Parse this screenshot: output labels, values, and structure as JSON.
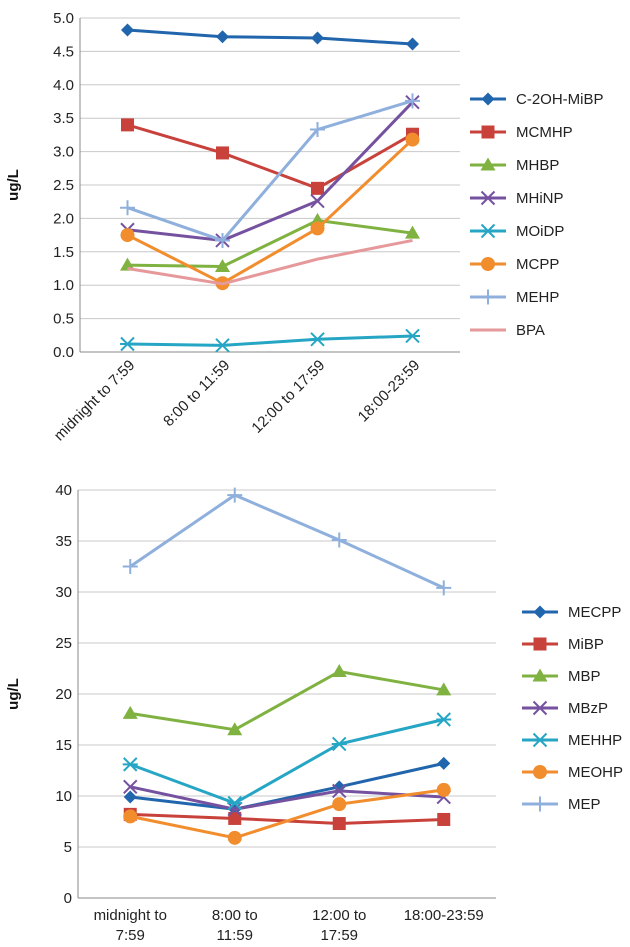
{
  "chart_data": [
    {
      "type": "line",
      "ylabel": "ug/L",
      "ylim": [
        0,
        5
      ],
      "yticks": [
        "0.0",
        "0.5",
        "1.0",
        "1.5",
        "2.0",
        "2.5",
        "3.0",
        "3.5",
        "4.0",
        "4.5",
        "5.0"
      ],
      "categories": [
        "midnight to 7:59",
        "8:00 to 11:59",
        "12:00 to 17:59",
        "18:00-23:59"
      ],
      "grid": true,
      "legend": "right",
      "series": [
        {
          "name": "C-2OH-MiBP",
          "color": "#2166ac",
          "marker": "diamond",
          "values": [
            4.82,
            4.72,
            4.7,
            4.61
          ]
        },
        {
          "name": "MCMHP",
          "color": "#c8413b",
          "marker": "square",
          "values": [
            3.4,
            2.98,
            2.45,
            3.26
          ]
        },
        {
          "name": "MHBP",
          "color": "#80b241",
          "marker": "triangle",
          "values": [
            1.3,
            1.28,
            1.97,
            1.78
          ]
        },
        {
          "name": "MHiNP",
          "color": "#7552a0",
          "marker": "x",
          "values": [
            1.83,
            1.67,
            2.26,
            3.74
          ]
        },
        {
          "name": "MOiDP",
          "color": "#26a6c4",
          "marker": "asterisk",
          "values": [
            0.12,
            0.1,
            0.19,
            0.24
          ]
        },
        {
          "name": "MCPP",
          "color": "#f28d2e",
          "marker": "circle",
          "values": [
            1.75,
            1.03,
            1.85,
            3.18
          ]
        },
        {
          "name": "MEHP",
          "color": "#8fb0dc",
          "marker": "plus",
          "values": [
            2.16,
            1.67,
            3.33,
            3.76
          ]
        },
        {
          "name": "BPA",
          "color": "#e6999a",
          "marker": "none",
          "values": [
            1.25,
            1.02,
            1.39,
            1.67
          ]
        }
      ]
    },
    {
      "type": "line",
      "ylabel": "ug/L",
      "ylim": [
        0,
        40
      ],
      "yticks": [
        "0",
        "5",
        "10",
        "15",
        "20",
        "25",
        "30",
        "35",
        "40"
      ],
      "categories": [
        "midnight to 7:59",
        "8:00 to 11:59",
        "12:00 to 17:59",
        "18:00-23:59"
      ],
      "grid": true,
      "legend": "right",
      "series": [
        {
          "name": "MECPP",
          "color": "#2166ac",
          "marker": "diamond",
          "values": [
            9.9,
            8.7,
            10.9,
            13.2
          ]
        },
        {
          "name": "MiBP",
          "color": "#c8413b",
          "marker": "square",
          "values": [
            8.2,
            7.8,
            7.3,
            7.7
          ]
        },
        {
          "name": "MBP",
          "color": "#80b241",
          "marker": "triangle",
          "values": [
            18.1,
            16.5,
            22.2,
            20.4
          ]
        },
        {
          "name": "MBzP",
          "color": "#7552a0",
          "marker": "x",
          "values": [
            10.9,
            8.7,
            10.5,
            9.9
          ]
        },
        {
          "name": "MEHHP",
          "color": "#26a6c4",
          "marker": "asterisk",
          "values": [
            13.1,
            9.3,
            15.1,
            17.5
          ]
        },
        {
          "name": "MEOHP",
          "color": "#f28d2e",
          "marker": "circle",
          "values": [
            8.0,
            5.9,
            9.2,
            10.6
          ]
        },
        {
          "name": "MEP",
          "color": "#8fb0dc",
          "marker": "plus",
          "values": [
            32.5,
            39.5,
            35.1,
            30.4
          ]
        }
      ]
    }
  ]
}
